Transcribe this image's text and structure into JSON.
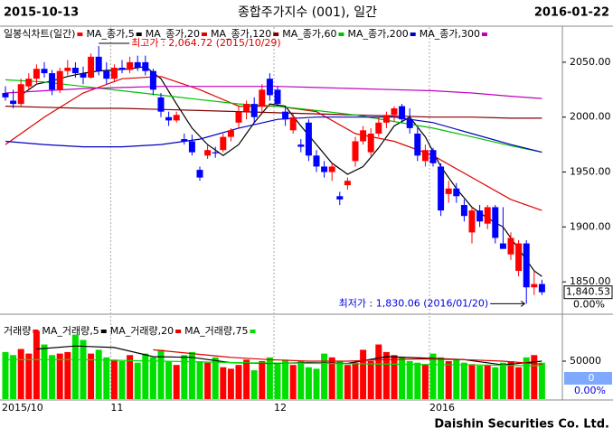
{
  "header": {
    "start": "2015-10-13",
    "title": "종합주가지수 (001), 일간",
    "end": "2016-01-22"
  },
  "footer": "Daishin Securities Co. Ltd.",
  "chart_data": [
    {
      "type": "candlestick",
      "candles": {
        "name": "일봉식차트(일간)",
        "up_color": "#ff0000",
        "down_color": "#0000ff",
        "open": [
          2022,
          2015,
          2012,
          2028,
          2035,
          2044,
          2040,
          2025,
          2042,
          2045,
          2040,
          2036,
          2055,
          2042,
          2035,
          2045,
          2043,
          2050,
          2050,
          2042,
          2018,
          2000,
          1997,
          1980,
          1978,
          1952,
          1965,
          1968,
          1970,
          1982,
          1995,
          2005,
          2012,
          2010,
          2035,
          2025,
          2005,
          1988,
          1975,
          1995,
          1965,
          1955,
          1950,
          1928,
          1938,
          1960,
          1978,
          1968,
          1985,
          1995,
          2002,
          2010,
          1998,
          1985,
          1960,
          1970,
          1955,
          1930,
          1935,
          1920,
          1895,
          1915,
          1903,
          1918,
          1885,
          1875,
          1860,
          1885,
          1845,
          1848
        ],
        "high": [
          2028,
          2025,
          2035,
          2040,
          2048,
          2050,
          2043,
          2045,
          2052,
          2050,
          2046,
          2058,
          2064.72,
          2050,
          2048,
          2052,
          2055,
          2056,
          2056,
          2044,
          2022,
          2005,
          2005,
          1985,
          1984,
          1955,
          1975,
          1973,
          1985,
          1990,
          2010,
          2015,
          2018,
          2030,
          2040,
          2028,
          2010,
          2003,
          1980,
          1998,
          1970,
          1960,
          1958,
          1932,
          1945,
          1982,
          1992,
          1990,
          2000,
          2005,
          2010,
          2012,
          2008,
          1990,
          1975,
          1972,
          1958,
          1942,
          1940,
          1925,
          1918,
          1920,
          1920,
          1920,
          1918,
          1895,
          1888,
          1888,
          1860,
          1852
        ],
        "low": [
          2015,
          2008,
          2010,
          2025,
          2030,
          2036,
          2020,
          2022,
          2038,
          2036,
          2030,
          2035,
          2038,
          2030,
          2032,
          2040,
          2040,
          2042,
          2038,
          2020,
          2000,
          1992,
          1995,
          1975,
          1965,
          1942,
          1962,
          1963,
          1968,
          1978,
          1990,
          1998,
          1995,
          2005,
          2015,
          2010,
          1992,
          1985,
          1968,
          1960,
          1950,
          1945,
          1942,
          1920,
          1934,
          1955,
          1975,
          1965,
          1982,
          1990,
          1996,
          1995,
          1985,
          1960,
          1955,
          1955,
          1910,
          1922,
          1922,
          1905,
          1885,
          1900,
          1898,
          1885,
          1880,
          1870,
          1855,
          1830.06,
          1838,
          1838
        ],
        "close": [
          2018,
          2012,
          2030,
          2035,
          2044,
          2040,
          2025,
          2042,
          2045,
          2040,
          2036,
          2055,
          2042,
          2035,
          2045,
          2043,
          2050,
          2045,
          2042,
          2025,
          2005,
          1997,
          2002,
          1978,
          1968,
          1945,
          1970,
          1967,
          1982,
          1988,
          2005,
          2012,
          2000,
          2025,
          2020,
          2012,
          1998,
          2000,
          1973,
          1965,
          1955,
          1950,
          1955,
          1925,
          1942,
          1978,
          1988,
          1985,
          1995,
          2002,
          2008,
          1998,
          1990,
          1965,
          1970,
          1958,
          1915,
          1935,
          1928,
          1910,
          1915,
          1905,
          1918,
          1890,
          1880,
          1890,
          1885,
          1845,
          1848,
          1840.53
        ]
      },
      "series": [
        {
          "name": "MA_종가,5",
          "color": "#000000",
          "x": [
            2,
            4,
            6,
            8,
            10,
            12,
            14,
            16,
            18,
            20,
            22,
            24,
            26,
            28,
            30,
            32,
            34,
            36,
            38,
            40,
            42,
            44,
            46,
            48,
            50,
            52,
            54,
            56,
            58,
            60,
            62,
            64,
            66,
            68,
            69
          ],
          "values": [
            2020,
            2030,
            2033,
            2037,
            2040,
            2042,
            2043,
            2044,
            2046,
            2035,
            2012,
            1990,
            1975,
            1965,
            1975,
            1995,
            2012,
            2010,
            1992,
            1975,
            1958,
            1948,
            1955,
            1972,
            1992,
            2000,
            1982,
            1955,
            1935,
            1918,
            1908,
            1900,
            1880,
            1860,
            1855
          ]
        },
        {
          "name": "MA_종가,20",
          "color": "#e00000",
          "x": [
            0,
            5,
            10,
            15,
            20,
            25,
            30,
            35,
            40,
            45,
            50,
            55,
            60,
            65,
            69
          ],
          "values": [
            1975,
            2000,
            2022,
            2035,
            2037,
            2025,
            2010,
            2010,
            2005,
            1985,
            1978,
            1965,
            1945,
            1925,
            1915
          ]
        },
        {
          "name": "MA_종가,120",
          "color": "#800000",
          "x": [
            0,
            5,
            10,
            15,
            20,
            25,
            30,
            35,
            40,
            45,
            50,
            55,
            60,
            65,
            69
          ],
          "values": [
            2010,
            2009,
            2008,
            2008,
            2007,
            2006,
            2005,
            2004,
            2003,
            2002,
            2001,
            2000,
            2000,
            1999,
            1999
          ]
        },
        {
          "name": "MA_종가,60",
          "color": "#00c000",
          "x": [
            0,
            5,
            10,
            15,
            20,
            25,
            30,
            35,
            40,
            45,
            50,
            55,
            60,
            65,
            69
          ],
          "values": [
            2034,
            2032,
            2028,
            2024,
            2020,
            2016,
            2012,
            2010,
            2006,
            2002,
            1996,
            1990,
            1982,
            1974,
            1968
          ]
        },
        {
          "name": "MA_종가,200",
          "color": "#0000c0",
          "x": [
            0,
            5,
            10,
            15,
            20,
            25,
            30,
            35,
            40,
            45,
            50,
            55,
            60,
            65,
            69
          ],
          "values": [
            1978,
            1975,
            1973,
            1973,
            1975,
            1980,
            1990,
            1998,
            2000,
            2000,
            2000,
            1995,
            1985,
            1975,
            1968
          ]
        },
        {
          "name": "MA_종가,300",
          "color": "#c000c0",
          "x": [
            0,
            5,
            10,
            15,
            20,
            25,
            30,
            35,
            40,
            45,
            50,
            55,
            60,
            65,
            69
          ],
          "values": [
            2022,
            2024,
            2026,
            2027,
            2028,
            2028,
            2028,
            2028,
            2027,
            2026,
            2025,
            2024,
            2022,
            2019,
            2017
          ]
        }
      ],
      "ylim": [
        1823,
        2082
      ],
      "yticks": [
        {
          "value": 2050,
          "label": "2050.00"
        },
        {
          "value": 2000,
          "label": "2000.00"
        },
        {
          "value": 1950,
          "label": "1950.00"
        },
        {
          "value": 1900,
          "label": "1900.00"
        },
        {
          "value": 1850,
          "label": "1850.00"
        }
      ],
      "annotations": [
        {
          "text": "최고가 : 2,064.72 (2015/10/29)",
          "value": 2064.72,
          "color": "#e00000"
        },
        {
          "text": "최저가 : 1,830.06 (2016/01/20)",
          "value": 1830.06,
          "color": "#0000e0"
        }
      ],
      "price_box": {
        "value": 1840.53,
        "label": "1,840.53",
        "change": "0.00%"
      }
    },
    {
      "type": "bar",
      "title": "거래량",
      "color": "#ff0000",
      "up_color": "#ff0000",
      "down_color": "#00e000",
      "categories": [
        "2015/10",
        null,
        null,
        null,
        null,
        null,
        null,
        null,
        null,
        null,
        null,
        null,
        null,
        null,
        "11",
        null,
        null,
        null,
        null,
        null,
        null,
        null,
        null,
        null,
        null,
        null,
        null,
        null,
        null,
        null,
        null,
        null,
        null,
        null,
        null,
        "12",
        null,
        null,
        null,
        null,
        null,
        null,
        null,
        null,
        null,
        null,
        null,
        null,
        null,
        null,
        null,
        null,
        null,
        null,
        null,
        "2016",
        null,
        null,
        null,
        null,
        null,
        null,
        null,
        null,
        null,
        null,
        null,
        null,
        null,
        null
      ],
      "values": [
        62000,
        58000,
        66000,
        60000,
        90000,
        72000,
        58000,
        60000,
        62000,
        85000,
        78000,
        60000,
        65000,
        55000,
        52000,
        50000,
        58000,
        48000,
        60000,
        55000,
        65000,
        50000,
        45000,
        58000,
        62000,
        50000,
        48000,
        55000,
        42000,
        40000,
        45000,
        52000,
        38000,
        50000,
        55000,
        48000,
        52000,
        45000,
        50000,
        42000,
        40000,
        60000,
        55000,
        50000,
        45000,
        48000,
        65000,
        50000,
        72000,
        62000,
        58000,
        55000,
        50000,
        48000,
        46000,
        60000,
        55000,
        50000,
        52000,
        48000,
        46000,
        44000,
        45000,
        42000,
        48000,
        50000,
        42000,
        55000,
        58000,
        48000
      ],
      "series": [
        {
          "name": "MA_거래량,5",
          "color": "#000000",
          "x": [
            4,
            9,
            14,
            19,
            24,
            29,
            34,
            39,
            44,
            49,
            54,
            59,
            64,
            69
          ],
          "values": [
            66000,
            70000,
            68000,
            56000,
            55000,
            48000,
            47000,
            48000,
            47000,
            56000,
            54000,
            52000,
            45000,
            50000
          ]
        },
        {
          "name": "MA_거래량,20",
          "color": "#e00000",
          "x": [
            19,
            24,
            29,
            34,
            39,
            44,
            49,
            54,
            59,
            64,
            69
          ],
          "values": [
            65000,
            60000,
            55000,
            52000,
            50000,
            50000,
            52000,
            53000,
            52000,
            50000,
            46000
          ]
        },
        {
          "name": "MA_거래량,75",
          "color": "#00e000",
          "x": [
            0,
            10,
            20,
            30,
            40,
            50,
            60,
            69
          ],
          "values": [
            52000,
            52000,
            50000,
            48000,
            47000,
            46000,
            45000,
            44000
          ]
        }
      ],
      "ylim": [
        0,
        100000
      ],
      "yticks": [
        50000
      ],
      "value_box": {
        "value": 0,
        "change": "0.00%"
      }
    }
  ]
}
